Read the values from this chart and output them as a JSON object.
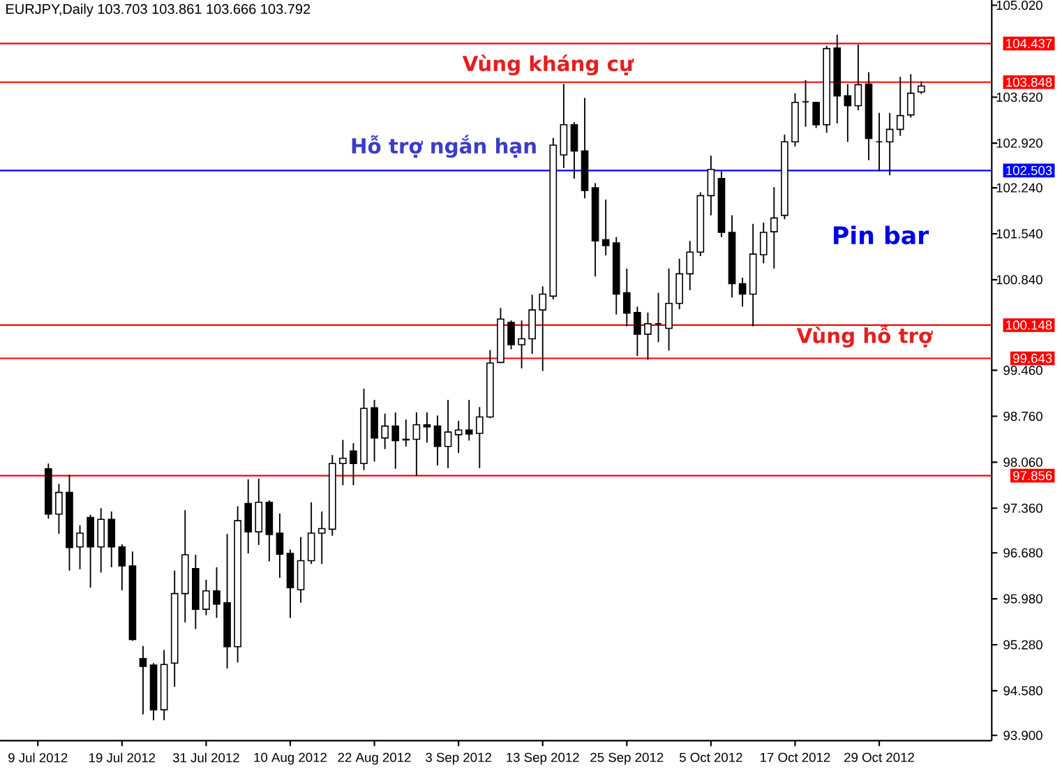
{
  "chart_data": {
    "type": "candlestick",
    "title": "EURJPY,Daily  103.703 103.861 103.666 103.792",
    "color": "#000000",
    "categories": [
      "9 Jul 2012",
      null,
      null,
      null,
      null,
      null,
      null,
      null,
      "19 Jul 2012",
      null,
      null,
      null,
      null,
      null,
      null,
      null,
      "31 Jul 2012",
      null,
      null,
      null,
      null,
      null,
      null,
      null,
      "10 Aug 2012",
      null,
      null,
      null,
      null,
      null,
      null,
      null,
      "22 Aug 2012",
      null,
      null,
      null,
      null,
      null,
      null,
      null,
      "3 Sep 2012",
      null,
      null,
      null,
      null,
      null,
      null,
      null,
      "13 Sep 2012",
      null,
      null,
      null,
      null,
      null,
      null,
      null,
      "25 Sep 2012",
      null,
      null,
      null,
      null,
      null,
      null,
      null,
      "5 Oct 2012",
      null,
      null,
      null,
      null,
      null,
      null,
      null,
      "17 Oct 2012",
      null,
      null,
      null,
      null,
      null,
      null,
      null,
      "29 Oct 2012",
      null,
      null,
      null,
      null
    ],
    "ohlc": [
      null,
      [
        97.96,
        98.04,
        97.2,
        97.27
      ],
      [
        97.27,
        97.73,
        96.97,
        97.6
      ],
      [
        97.6,
        97.87,
        96.41,
        96.76
      ],
      [
        96.77,
        97.1,
        96.43,
        96.98
      ],
      [
        97.22,
        97.26,
        96.15,
        96.77
      ],
      [
        96.77,
        97.36,
        96.38,
        97.19
      ],
      [
        97.19,
        97.31,
        96.46,
        96.77
      ],
      [
        96.77,
        96.81,
        96.11,
        96.48
      ],
      [
        96.48,
        96.7,
        95.34,
        95.36
      ],
      [
        95.07,
        95.26,
        94.22,
        94.95
      ],
      [
        94.97,
        95.0,
        94.13,
        94.29
      ],
      [
        94.29,
        95.2,
        94.13,
        94.98
      ],
      [
        95.0,
        96.41,
        94.64,
        96.06
      ],
      [
        96.06,
        97.33,
        95.62,
        96.65
      ],
      [
        96.44,
        96.65,
        95.52,
        95.82
      ],
      [
        95.82,
        96.27,
        95.73,
        96.1
      ],
      [
        96.1,
        96.46,
        95.69,
        95.9
      ],
      [
        95.92,
        96.97,
        94.92,
        95.25
      ],
      [
        95.25,
        97.39,
        95.01,
        97.17
      ],
      [
        97.43,
        97.8,
        96.67,
        97.0
      ],
      [
        97.0,
        97.81,
        96.8,
        97.45
      ],
      [
        97.45,
        97.48,
        96.55,
        96.96
      ],
      [
        96.98,
        97.28,
        96.3,
        96.66
      ],
      [
        96.67,
        96.73,
        95.69,
        96.15
      ],
      [
        96.12,
        96.92,
        95.92,
        96.56
      ],
      [
        96.56,
        97.45,
        96.51,
        96.98
      ],
      [
        96.98,
        97.31,
        96.51,
        97.05
      ],
      [
        97.04,
        98.17,
        96.94,
        98.04
      ],
      [
        98.04,
        98.4,
        97.71,
        98.12
      ],
      [
        98.23,
        98.35,
        97.71,
        98.04
      ],
      [
        98.04,
        99.18,
        97.94,
        98.88
      ],
      [
        98.89,
        99.01,
        98.07,
        98.43
      ],
      [
        98.43,
        98.8,
        98.26,
        98.61
      ],
      [
        98.61,
        98.82,
        97.96,
        98.39
      ],
      [
        98.41,
        98.71,
        98.3,
        98.4
      ],
      [
        98.41,
        98.82,
        97.85,
        98.63
      ],
      [
        98.63,
        98.82,
        98.36,
        98.6
      ],
      [
        98.61,
        98.77,
        98.01,
        98.3
      ],
      [
        98.3,
        99.01,
        97.97,
        98.52
      ],
      [
        98.48,
        98.69,
        98.2,
        98.55
      ],
      [
        98.55,
        99.01,
        98.39,
        98.49
      ],
      [
        98.5,
        98.9,
        97.97,
        98.75
      ],
      [
        98.75,
        99.77,
        98.73,
        99.57
      ],
      [
        99.58,
        100.41,
        99.57,
        100.24
      ],
      [
        100.19,
        100.22,
        99.78,
        99.85
      ],
      [
        99.85,
        100.22,
        99.49,
        99.94
      ],
      [
        99.94,
        100.61,
        99.71,
        100.38
      ],
      [
        100.38,
        100.74,
        99.45,
        100.62
      ],
      [
        100.59,
        103.0,
        100.54,
        102.89
      ],
      [
        102.74,
        103.82,
        102.54,
        103.2
      ],
      [
        103.2,
        103.24,
        102.38,
        102.8
      ],
      [
        102.8,
        103.61,
        102.08,
        102.2
      ],
      [
        102.24,
        102.31,
        100.89,
        101.43
      ],
      [
        101.45,
        102.06,
        101.21,
        101.36
      ],
      [
        101.4,
        101.49,
        100.31,
        100.62
      ],
      [
        100.64,
        101.01,
        100.13,
        100.33
      ],
      [
        100.34,
        100.43,
        99.68,
        100.01
      ],
      [
        100.01,
        100.34,
        99.62,
        100.17
      ],
      [
        100.17,
        100.64,
        99.89,
        100.17
      ],
      [
        100.1,
        101.01,
        99.76,
        100.48
      ],
      [
        100.48,
        101.16,
        100.39,
        100.93
      ],
      [
        100.93,
        101.43,
        100.68,
        101.26
      ],
      [
        101.26,
        102.17,
        101.2,
        102.12
      ],
      [
        102.12,
        102.73,
        101.82,
        102.52
      ],
      [
        102.38,
        102.49,
        101.49,
        101.56
      ],
      [
        101.56,
        101.82,
        100.57,
        100.78
      ],
      [
        100.78,
        100.87,
        100.43,
        100.62
      ],
      [
        100.62,
        101.69,
        100.13,
        101.23
      ],
      [
        101.22,
        101.71,
        101.09,
        101.56
      ],
      [
        101.57,
        102.25,
        101.01,
        101.78
      ],
      [
        101.82,
        103.05,
        101.76,
        102.94
      ],
      [
        102.94,
        103.68,
        102.87,
        103.54
      ],
      [
        103.55,
        103.88,
        103.17,
        103.55
      ],
      [
        103.54,
        103.55,
        103.15,
        103.2
      ],
      [
        103.2,
        104.4,
        103.08,
        104.36
      ],
      [
        104.37,
        104.57,
        103.22,
        103.64
      ],
      [
        103.64,
        103.82,
        102.94,
        103.49
      ],
      [
        103.49,
        104.42,
        103.42,
        103.81
      ],
      [
        103.82,
        104.0,
        102.66,
        102.99
      ],
      [
        102.94,
        103.38,
        102.49,
        102.94
      ],
      [
        102.94,
        103.38,
        102.43,
        103.13
      ],
      [
        103.13,
        103.93,
        103.03,
        103.34
      ],
      [
        103.35,
        103.97,
        103.31,
        103.68
      ],
      [
        103.7,
        103.86,
        103.67,
        103.79
      ]
    ],
    "ylim": [
      93.82,
      105.1
    ],
    "yticks": [
      {
        "value": 93.9,
        "label": "93.900"
      },
      {
        "value": 94.58,
        "label": "94.580"
      },
      {
        "value": 95.28,
        "label": "95.280"
      },
      {
        "value": 95.98,
        "label": "95.980"
      },
      {
        "value": 96.68,
        "label": "96.680"
      },
      {
        "value": 97.36,
        "label": "97.360"
      },
      {
        "value": 98.06,
        "label": "98.060"
      },
      {
        "value": 98.76,
        "label": "98.760"
      },
      {
        "value": 99.46,
        "label": "99.460"
      },
      {
        "value": 100.84,
        "label": "100.840"
      },
      {
        "value": 101.54,
        "label": "101.540"
      },
      {
        "value": 102.24,
        "label": "102.240"
      },
      {
        "value": 102.92,
        "label": "102.920"
      },
      {
        "value": 103.62,
        "label": "103.620"
      },
      {
        "value": 105.02,
        "label": "105.020"
      }
    ],
    "ref_lines": [
      {
        "axis": "y",
        "value": 104.437,
        "label": "104.437",
        "color": "#ff0000"
      },
      {
        "axis": "y",
        "value": 103.848,
        "label": "103.848",
        "color": "#ff0000"
      },
      {
        "axis": "y",
        "value": 102.503,
        "label": "102.503",
        "color": "#0000ff"
      },
      {
        "axis": "y",
        "value": 100.148,
        "label": "100.148",
        "color": "#ff0000"
      },
      {
        "axis": "y",
        "value": 99.643,
        "label": "99.643",
        "color": "#ff0000"
      },
      {
        "axis": "y",
        "value": 97.856,
        "label": "97.856",
        "color": "#ff0000"
      }
    ],
    "annotations": [
      "Vùng kháng cự",
      "Hỗ trợ ngắn hạn",
      "Pin bar",
      "Vùng hỗ trợ"
    ],
    "grid": false
  }
}
